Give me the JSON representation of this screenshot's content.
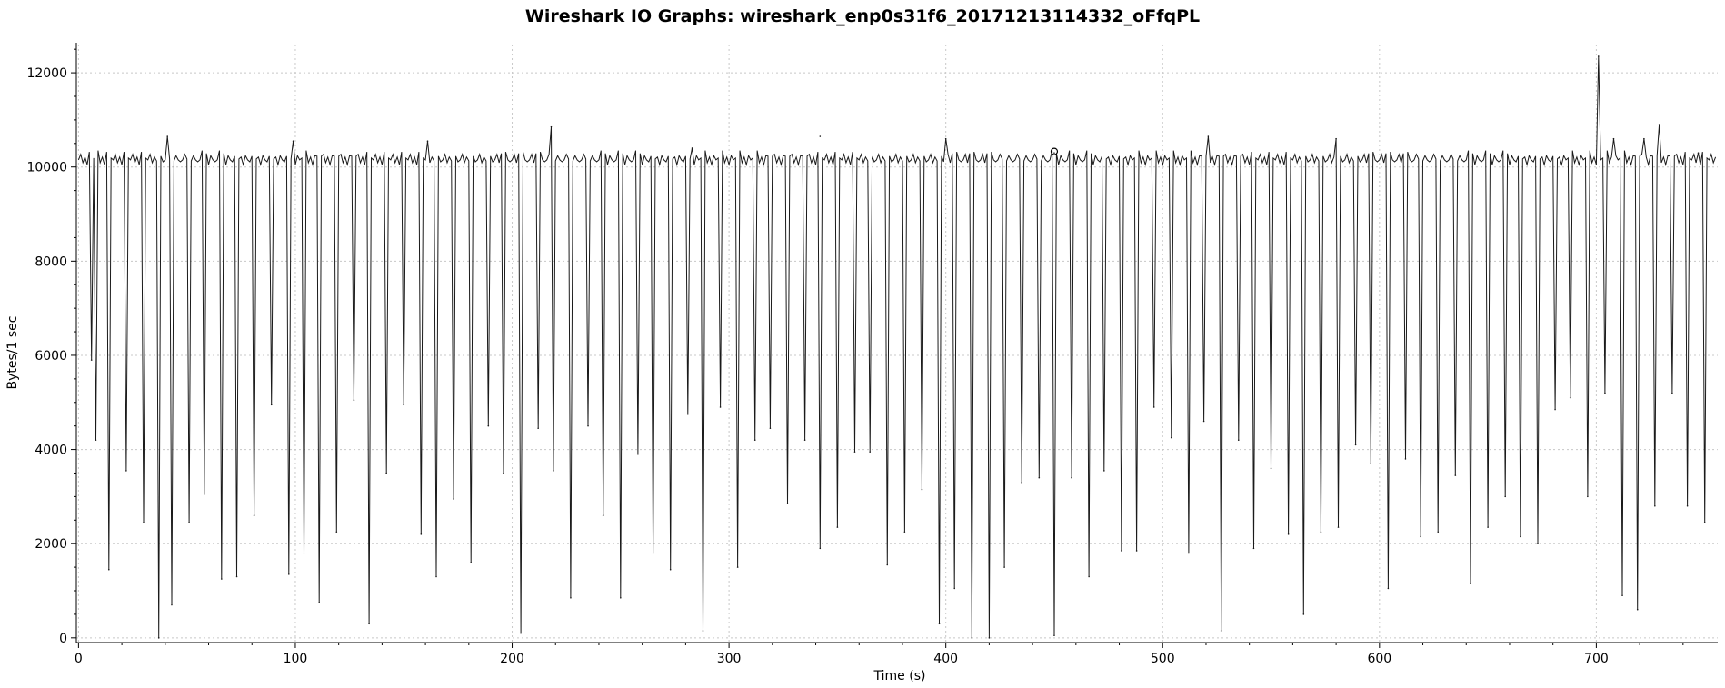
{
  "chart_data": {
    "type": "line",
    "title": "Wireshark IO Graphs: wireshark_enp0s31f6_20171213114332_oFfqPL",
    "xlabel": "Time (s)",
    "ylabel": "Bytes/1 sec",
    "xlim": [
      -1,
      756
    ],
    "ylim": [
      -100,
      12600
    ],
    "xticks": [
      0,
      100,
      200,
      300,
      400,
      500,
      600,
      700
    ],
    "yticks": [
      0,
      2000,
      4000,
      6000,
      8000,
      10000,
      12000
    ],
    "grid": true,
    "marker": {
      "x": 450,
      "y": 10330
    },
    "series": [
      {
        "color": "#1a1a1a",
        "baseline": 10150,
        "x_range": [
          0,
          755
        ],
        "dips": [
          [
            6,
            5900
          ],
          [
            8,
            4200
          ],
          [
            14,
            1450
          ],
          [
            22,
            3550
          ],
          [
            30,
            2450
          ],
          [
            37,
            0
          ],
          [
            43,
            700
          ],
          [
            51,
            2450
          ],
          [
            58,
            3050
          ],
          [
            66,
            1250
          ],
          [
            73,
            1300
          ],
          [
            81,
            2600
          ],
          [
            89,
            4950
          ],
          [
            97,
            1350
          ],
          [
            104,
            1800
          ],
          [
            111,
            750
          ],
          [
            119,
            2250
          ],
          [
            127,
            5050
          ],
          [
            134,
            300
          ],
          [
            142,
            3500
          ],
          [
            150,
            4950
          ],
          [
            158,
            2200
          ],
          [
            165,
            1300
          ],
          [
            173,
            2950
          ],
          [
            181,
            1600
          ],
          [
            189,
            4500
          ],
          [
            196,
            3500
          ],
          [
            204,
            100
          ],
          [
            212,
            4450
          ],
          [
            219,
            3550
          ],
          [
            227,
            850
          ],
          [
            235,
            4500
          ],
          [
            242,
            2600
          ],
          [
            250,
            850
          ],
          [
            258,
            3900
          ],
          [
            265,
            1800
          ],
          [
            273,
            1450
          ],
          [
            281,
            4750
          ],
          [
            288,
            150
          ],
          [
            296,
            4900
          ],
          [
            304,
            1500
          ],
          [
            312,
            4200
          ],
          [
            319,
            4450
          ],
          [
            327,
            2850
          ],
          [
            335,
            4200
          ],
          [
            342,
            1900
          ],
          [
            350,
            2350
          ],
          [
            358,
            3950
          ],
          [
            365,
            3950
          ],
          [
            373,
            1550
          ],
          [
            381,
            2250
          ],
          [
            389,
            3150
          ],
          [
            397,
            300
          ],
          [
            404,
            1050
          ],
          [
            412,
            0
          ],
          [
            420,
            0
          ],
          [
            427,
            1500
          ],
          [
            435,
            3300
          ],
          [
            443,
            3400
          ],
          [
            450,
            50
          ],
          [
            458,
            3400
          ],
          [
            466,
            1300
          ],
          [
            473,
            3550
          ],
          [
            481,
            1850
          ],
          [
            488,
            1850
          ],
          [
            496,
            4900
          ],
          [
            504,
            4250
          ],
          [
            512,
            1800
          ],
          [
            519,
            4600
          ],
          [
            527,
            150
          ],
          [
            535,
            4200
          ],
          [
            542,
            1900
          ],
          [
            550,
            3600
          ],
          [
            558,
            2200
          ],
          [
            565,
            500
          ],
          [
            573,
            2250
          ],
          [
            581,
            2350
          ],
          [
            589,
            4100
          ],
          [
            596,
            3700
          ],
          [
            604,
            1050
          ],
          [
            612,
            3800
          ],
          [
            619,
            2150
          ],
          [
            627,
            2250
          ],
          [
            635,
            3450
          ],
          [
            642,
            1150
          ],
          [
            650,
            2350
          ],
          [
            658,
            3000
          ],
          [
            665,
            2150
          ],
          [
            673,
            2000
          ],
          [
            681,
            4850
          ],
          [
            688,
            5100
          ],
          [
            696,
            3000
          ],
          [
            704,
            5200
          ],
          [
            712,
            900
          ],
          [
            719,
            600
          ],
          [
            727,
            2800
          ],
          [
            735,
            5200
          ],
          [
            742,
            2800
          ],
          [
            750,
            2450
          ]
        ],
        "peaks": [
          [
            41,
            10650
          ],
          [
            99,
            10550
          ],
          [
            161,
            10550
          ],
          [
            218,
            10850
          ],
          [
            283,
            10400
          ],
          [
            342,
            10650
          ],
          [
            400,
            10600
          ],
          [
            450,
            10300
          ],
          [
            521,
            10650
          ],
          [
            580,
            10600
          ],
          [
            701,
            12350
          ],
          [
            708,
            10600
          ],
          [
            722,
            10600
          ],
          [
            729,
            10900
          ],
          [
            747,
            10300
          ]
        ]
      }
    ]
  }
}
